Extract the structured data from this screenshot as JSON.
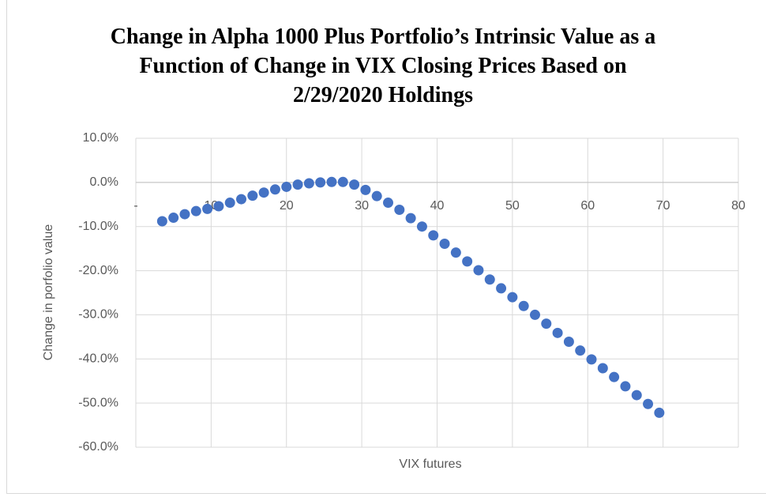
{
  "chart_data": {
    "type": "scatter",
    "title": "Change in Alpha 1000 Plus Portfolio’s Intrinsic Value as a Function of Change in VIX Closing Prices Based on 2/29/2020 Holdings",
    "x_label": "VIX futures",
    "y_label": "Change in porfolio value",
    "color": "#4472c4",
    "grid": true,
    "xlim": [
      0,
      80
    ],
    "xticks": [
      {
        "value": 0,
        "label": "-"
      },
      10,
      20,
      30,
      40,
      50,
      60,
      70,
      80
    ],
    "ylim": [
      -60,
      10
    ],
    "yticks": [
      {
        "value": 10,
        "label": "10.0%"
      },
      {
        "value": 0,
        "label": "0.0%"
      },
      {
        "value": -10,
        "label": "-10.0%"
      },
      {
        "value": -20,
        "label": "-20.0%"
      },
      {
        "value": -30,
        "label": "-30.0%"
      },
      {
        "value": -40,
        "label": "-40.0%"
      },
      {
        "value": -50,
        "label": "-50.0%"
      },
      {
        "value": -60,
        "label": "-60.0%"
      }
    ],
    "x": [
      3.5,
      5,
      6.5,
      8,
      9.5,
      11,
      12.5,
      14,
      15.5,
      17,
      18.5,
      20,
      21.5,
      23,
      24.5,
      26,
      27.5,
      29,
      30.5,
      32,
      33.5,
      35,
      36.5,
      38,
      39.5,
      41,
      42.5,
      44,
      45.5,
      47,
      48.5,
      50,
      51.5,
      53,
      54.5,
      56,
      57.5,
      59,
      60.5,
      62,
      63.5,
      65,
      66.5,
      68,
      69.5
    ],
    "values": [
      -8.8,
      -8.0,
      -7.2,
      -6.5,
      -6.0,
      -5.4,
      -4.6,
      -3.8,
      -3.0,
      -2.3,
      -1.6,
      -1.0,
      -0.5,
      -0.2,
      0.0,
      0.1,
      0.1,
      -0.5,
      -1.7,
      -3.1,
      -4.6,
      -6.2,
      -8.1,
      -10.0,
      -12.0,
      -13.9,
      -15.9,
      -17.9,
      -19.9,
      -22.0,
      -24.0,
      -26.0,
      -28.0,
      -30.0,
      -32.0,
      -34.1,
      -36.1,
      -38.1,
      -40.1,
      -42.1,
      -44.1,
      -46.2,
      -48.2,
      -50.2,
      -52.2
    ]
  }
}
